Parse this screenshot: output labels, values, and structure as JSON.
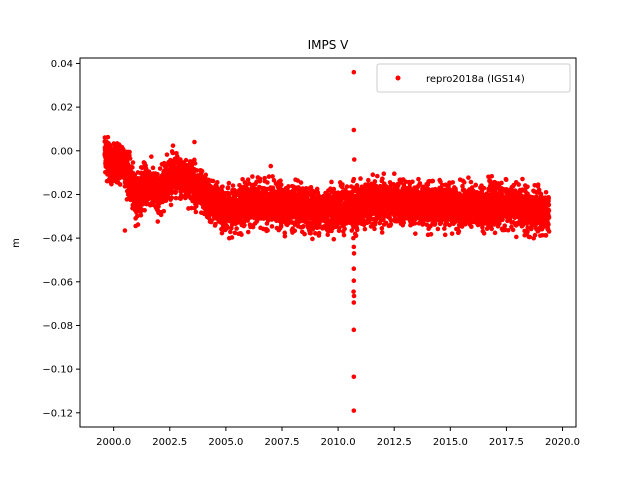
{
  "chart_data": {
    "type": "scatter",
    "title": "IMPS V",
    "xlabel": "",
    "ylabel": "m",
    "xlim": [
      1998.5,
      2020.6
    ],
    "ylim": [
      -0.1265,
      0.0425
    ],
    "x_ticks": [
      2000.0,
      2002.5,
      2005.0,
      2007.5,
      2010.0,
      2012.5,
      2015.0,
      2017.5,
      2020.0
    ],
    "x_tick_labels": [
      "2000.0",
      "2002.5",
      "2005.0",
      "2007.5",
      "2010.0",
      "2012.5",
      "2015.0",
      "2017.5",
      "2020.0"
    ],
    "y_ticks": [
      0.04,
      0.02,
      0.0,
      -0.02,
      -0.04,
      -0.06,
      -0.08,
      -0.1,
      -0.12
    ],
    "y_tick_labels": [
      "0.04",
      "0.02",
      "0.00",
      "−0.02",
      "−0.04",
      "−0.06",
      "−0.08",
      "−0.10",
      "−0.12"
    ],
    "grid": false,
    "legend_position": "top-right",
    "series": [
      {
        "name": "repro2018a (IGS14)",
        "color": "#ff0000",
        "marker": "circle",
        "trend": [
          [
            1999.6,
            0.0
          ],
          [
            1999.8,
            -0.004
          ],
          [
            2000.0,
            -0.008
          ],
          [
            2000.2,
            -0.006
          ],
          [
            2000.4,
            -0.004
          ],
          [
            2000.6,
            -0.009
          ],
          [
            2000.8,
            -0.016
          ],
          [
            2001.0,
            -0.022
          ],
          [
            2001.3,
            -0.016
          ],
          [
            2001.6,
            -0.015
          ],
          [
            2002.0,
            -0.021
          ],
          [
            2002.3,
            -0.013
          ],
          [
            2002.6,
            -0.011
          ],
          [
            2002.9,
            -0.012
          ],
          [
            2003.2,
            -0.014
          ],
          [
            2003.5,
            -0.013
          ],
          [
            2003.8,
            -0.019
          ],
          [
            2004.1,
            -0.021
          ],
          [
            2004.5,
            -0.024
          ],
          [
            2005.0,
            -0.027
          ],
          [
            2006.0,
            -0.024
          ],
          [
            2007.0,
            -0.025
          ],
          [
            2008.0,
            -0.026
          ],
          [
            2009.0,
            -0.027
          ],
          [
            2010.0,
            -0.027
          ],
          [
            2011.0,
            -0.025
          ],
          [
            2012.0,
            -0.024
          ],
          [
            2013.0,
            -0.024
          ],
          [
            2014.0,
            -0.025
          ],
          [
            2015.0,
            -0.025
          ],
          [
            2016.0,
            -0.026
          ],
          [
            2017.0,
            -0.025
          ],
          [
            2018.0,
            -0.026
          ],
          [
            2019.0,
            -0.028
          ],
          [
            2019.4,
            -0.03
          ]
        ],
        "x_range": [
          1999.6,
          2019.4
        ],
        "noise_std": 0.0045,
        "n_points": 7000,
        "outliers": [
          {
            "x": 2010.7,
            "y": 0.036
          },
          {
            "x": 2010.7,
            "y": 0.0095
          },
          {
            "x": 2010.72,
            "y": -0.004
          },
          {
            "x": 2010.7,
            "y": -0.013
          },
          {
            "x": 2010.68,
            "y": -0.04
          },
          {
            "x": 2010.7,
            "y": -0.044
          },
          {
            "x": 2010.71,
            "y": -0.047
          },
          {
            "x": 2010.7,
            "y": -0.054
          },
          {
            "x": 2010.7,
            "y": -0.0595
          },
          {
            "x": 2010.69,
            "y": -0.0645
          },
          {
            "x": 2010.71,
            "y": -0.0665
          },
          {
            "x": 2010.7,
            "y": -0.0695
          },
          {
            "x": 2010.7,
            "y": -0.082
          },
          {
            "x": 2010.7,
            "y": -0.1035
          },
          {
            "x": 2010.7,
            "y": -0.119
          },
          {
            "x": 2000.5,
            "y": -0.0365
          },
          {
            "x": 2003.6,
            "y": 0.004
          },
          {
            "x": 2007.0,
            "y": -0.007
          }
        ]
      }
    ]
  }
}
